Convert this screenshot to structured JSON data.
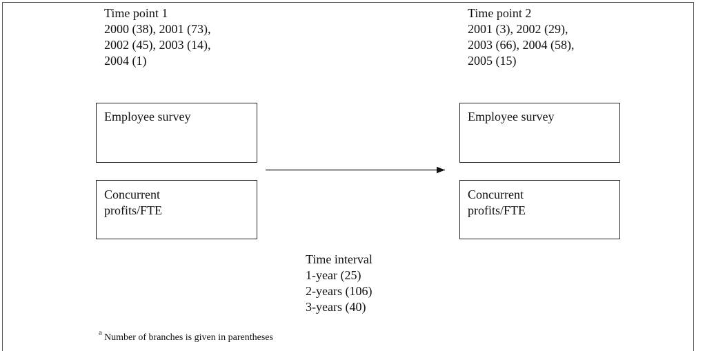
{
  "time_point_1": {
    "title": "Time point 1",
    "lines": [
      "2000 (38), 2001 (73),",
      "2002 (45), 2003 (14),",
      "2004 (1)"
    ],
    "boxes": [
      {
        "lines": [
          "Employee survey"
        ]
      },
      {
        "lines": [
          "Concurrent",
          "profits/FTE"
        ]
      }
    ]
  },
  "time_point_2": {
    "title": "Time point 2",
    "lines": [
      "2001 (3), 2002 (29),",
      "2003 (66), 2004 (58),",
      "2005 (15)"
    ],
    "boxes": [
      {
        "lines": [
          "Employee survey"
        ]
      },
      {
        "lines": [
          "Concurrent",
          "profits/FTE"
        ]
      }
    ]
  },
  "time_interval": {
    "title": "Time interval",
    "lines": [
      "1-year (25)",
      "2-years (106)",
      "3-years (40)"
    ]
  },
  "footnote": {
    "marker": "a",
    "text": "Number of branches is given in parentheses"
  }
}
